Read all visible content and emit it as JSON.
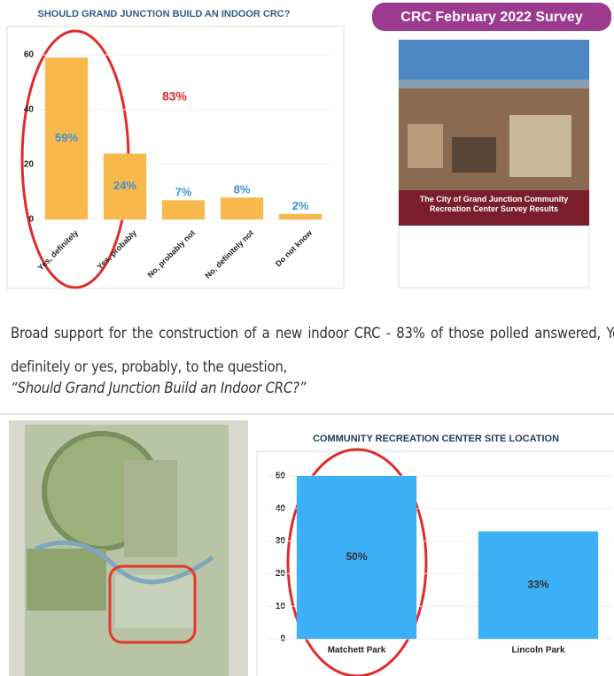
{
  "chart_data": [
    {
      "type": "bar",
      "title": "SHOULD GRAND JUNCTION BUILD AN INDOOR CRC?",
      "categories": [
        "Yes, definitely",
        "Yes, probably",
        "No, probably not",
        "No, definitely not",
        "Do not know"
      ],
      "values": [
        59,
        24,
        7,
        8,
        2
      ],
      "value_labels": [
        "59%",
        "24%",
        "7%",
        "8%",
        "2%"
      ],
      "color": "#f9b84b",
      "ylim": [
        0,
        60
      ],
      "yticks": [
        0,
        20,
        40,
        60
      ],
      "grid": true,
      "annotation": "83%"
    },
    {
      "type": "bar",
      "title": "COMMUNITY RECREATION CENTER SITE LOCATION",
      "categories": [
        "Matchett Park",
        "Lincoln Park"
      ],
      "values": [
        50,
        33
      ],
      "value_labels": [
        "50%",
        "33%"
      ],
      "color": "#3cb0f6",
      "ylim": [
        0,
        50
      ],
      "yticks": [
        0,
        10,
        20,
        30,
        40,
        50
      ],
      "grid": true
    }
  ],
  "badge": "CRC February 2022 Survey",
  "report_cover": {
    "title": "The City of Grand Junction Community Recreation Center Survey Results"
  },
  "caption": {
    "text": "Broad support for the construction of a new indoor CRC - 83% of those polled answered, Yes, definitely or yes, probably, to the question,",
    "quote": "“Should Grand Junction Build an Indoor CRC?”"
  }
}
